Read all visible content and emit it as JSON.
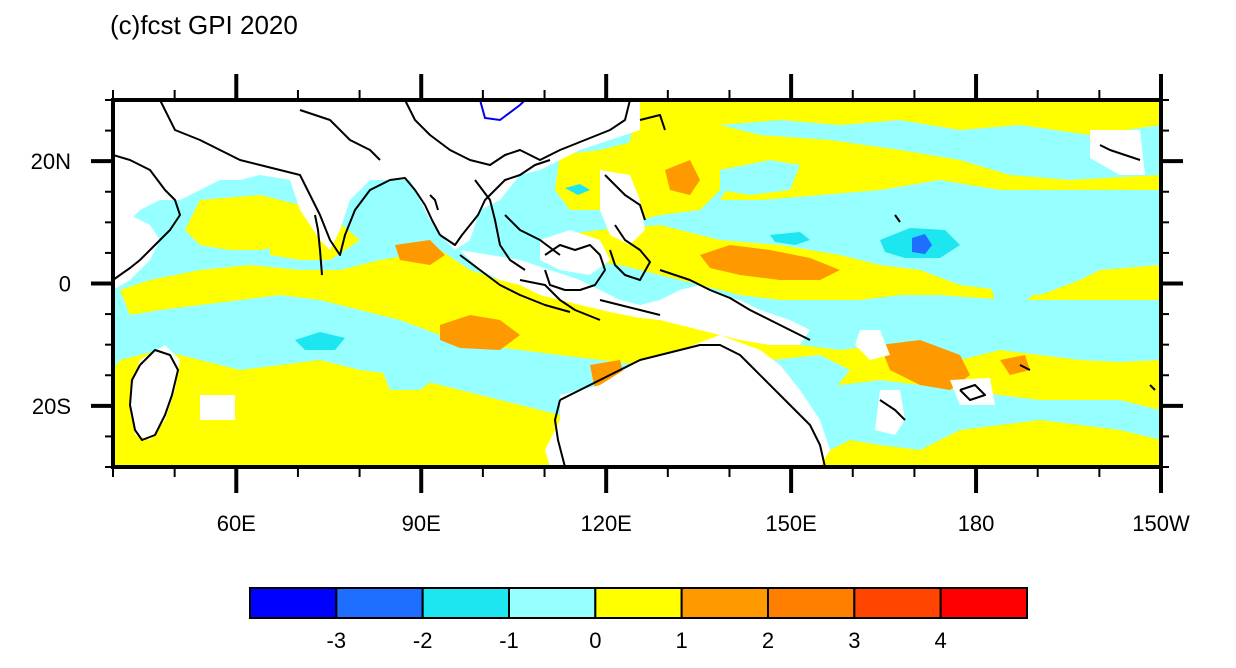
{
  "title": "(c)fcst GPI 2020",
  "colors": {
    "land": "#ffffff",
    "coast": "#000000",
    "frame": "#000000",
    "lake": "#0000ee"
  },
  "map": {
    "lon_range": [
      40,
      210
    ],
    "lat_range": [
      -30,
      30
    ],
    "x_ticks": [
      {
        "lon": 60,
        "label": "60E"
      },
      {
        "lon": 90,
        "label": "90E"
      },
      {
        "lon": 120,
        "label": "120E"
      },
      {
        "lon": 150,
        "label": "150E"
      },
      {
        "lon": 180,
        "label": "180"
      },
      {
        "lon": 210,
        "label": "150W"
      }
    ],
    "y_ticks": [
      {
        "lat": 20,
        "label": "20N"
      },
      {
        "lat": 0,
        "label": "0"
      },
      {
        "lat": -20,
        "label": "20S"
      }
    ]
  },
  "colorbar": {
    "colors": [
      "#0000ff",
      "#1e6eff",
      "#1ee6f0",
      "#96ffff",
      "#ffff00",
      "#ff9900",
      "#ff8000",
      "#ff4500",
      "#ff0000"
    ],
    "labels": [
      "-3",
      "-2",
      "-1",
      "0",
      "1",
      "2",
      "3",
      "4"
    ]
  }
}
